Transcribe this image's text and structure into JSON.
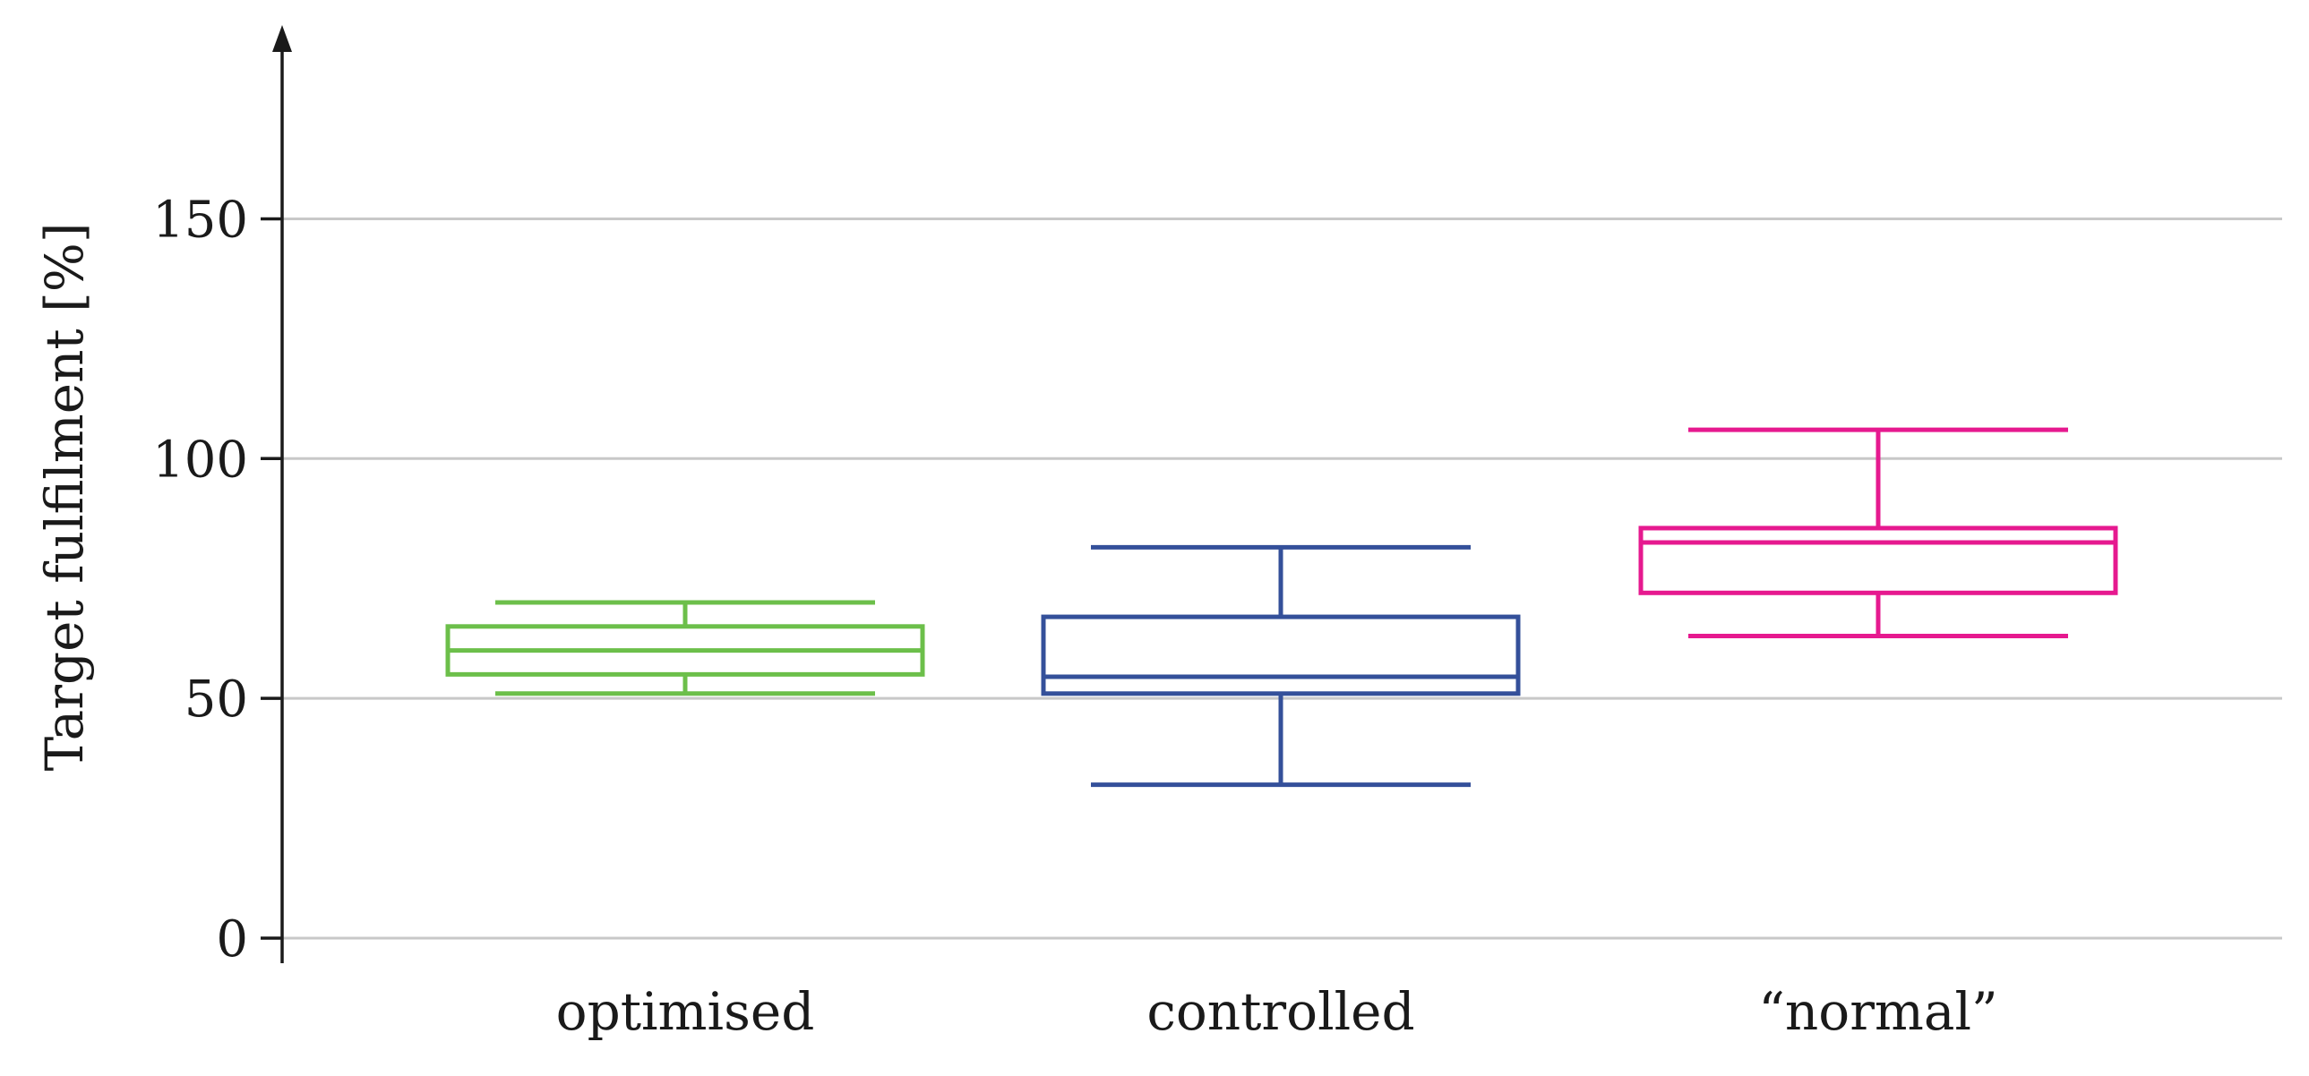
{
  "chart_data": {
    "type": "boxplot",
    "title": "",
    "xlabel": "",
    "ylabel": "Target fulfilment [%]",
    "ylim": [
      0,
      185
    ],
    "yticks": [
      0,
      50,
      100,
      150
    ],
    "grid": "horizontal",
    "categories": [
      "optimised",
      "controlled",
      "“normal”"
    ],
    "boxes": [
      {
        "category": "optimised",
        "color": "#6cbf4a",
        "whisker_low": 51,
        "q1": 55,
        "median": 60,
        "q3": 65,
        "whisker_high": 70
      },
      {
        "category": "controlled",
        "color": "#34509a",
        "whisker_low": 32,
        "q1": 51,
        "median": 54.5,
        "q3": 67,
        "whisker_high": 81.5
      },
      {
        "category": "“normal”",
        "color": "#e6198f",
        "whisker_low": 63,
        "q1": 72,
        "median": 82.5,
        "q3": 85.5,
        "whisker_high": 106
      }
    ]
  }
}
